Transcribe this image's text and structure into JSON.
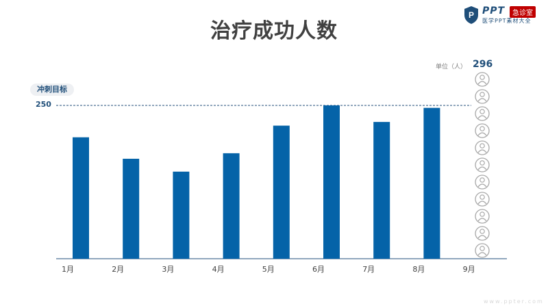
{
  "header": {
    "title": "治疗成功人数"
  },
  "logo": {
    "brand": "PPT",
    "badge": "急诊室",
    "subtitle": "医学PPT素材大全"
  },
  "unit": {
    "label": "单位（人）",
    "total": "296"
  },
  "target": {
    "label": "冲刺目标",
    "value_text": "250"
  },
  "watermark": "www.ppter.com",
  "colors": {
    "bar": "#0563a8",
    "text_dark": "#1f4e79",
    "icon": "#a6a6a6"
  },
  "chart_data": {
    "type": "bar",
    "title": "治疗成功人数",
    "categories": [
      "1月",
      "2月",
      "3月",
      "4月",
      "5月",
      "6月",
      "7月",
      "8月",
      "9月"
    ],
    "values": [
      198,
      163,
      142,
      172,
      217,
      250,
      223,
      246,
      null
    ],
    "ylim": [
      0,
      250
    ],
    "target": 250,
    "grid": false,
    "legend": "none"
  }
}
